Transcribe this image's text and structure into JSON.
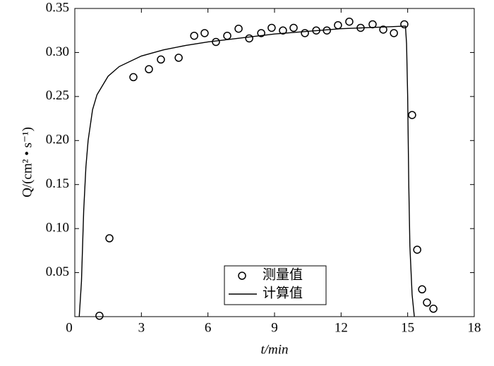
{
  "chart_data": {
    "type": "line",
    "xlabel": "t/min",
    "ylabel": "Q/(cm² • s⁻¹)",
    "xlim": [
      0,
      18
    ],
    "ylim": [
      0,
      0.35
    ],
    "xticks": [
      0,
      3,
      6,
      9,
      12,
      15,
      18
    ],
    "yticks": [
      {
        "value": 0.05,
        "label": "0.05"
      },
      {
        "value": 0.1,
        "label": "0.10"
      },
      {
        "value": 0.15,
        "label": "0.15"
      },
      {
        "value": 0.2,
        "label": "0.20"
      },
      {
        "value": 0.25,
        "label": "0.25"
      },
      {
        "value": 0.3,
        "label": "0.30"
      },
      {
        "value": 0.35,
        "label": "0.35"
      }
    ],
    "legend": "bottom-center",
    "series": [
      {
        "name": "测量值",
        "style": "markers",
        "color": "#000000",
        "x": [
          1.11,
          1.56,
          2.64,
          3.34,
          3.88,
          4.68,
          5.38,
          5.85,
          6.36,
          6.87,
          7.38,
          7.86,
          8.4,
          8.87,
          9.38,
          9.86,
          10.37,
          10.88,
          11.36,
          11.86,
          12.37,
          12.88,
          13.42,
          13.9,
          14.38,
          14.85,
          15.2,
          15.43,
          15.65,
          15.87,
          16.16
        ],
        "values": [
          0.001,
          0.089,
          0.272,
          0.281,
          0.292,
          0.294,
          0.319,
          0.322,
          0.312,
          0.319,
          0.327,
          0.316,
          0.322,
          0.328,
          0.325,
          0.328,
          0.322,
          0.325,
          0.325,
          0.331,
          0.335,
          0.328,
          0.332,
          0.326,
          0.322,
          0.332,
          0.229,
          0.076,
          0.031,
          0.016,
          0.009
        ]
      },
      {
        "name": "计算值",
        "style": "line",
        "color": "#000000",
        "x": [
          0.2,
          0.3,
          0.4,
          0.5,
          0.6,
          0.8,
          1.0,
          1.5,
          2,
          3,
          4,
          5,
          6,
          7,
          8,
          9,
          10,
          11,
          12,
          13,
          14,
          14.9,
          14.95,
          15.0,
          15.05,
          15.1,
          15.2,
          15.3
        ],
        "values": [
          0,
          0.04,
          0.12,
          0.17,
          0.2,
          0.235,
          0.252,
          0.273,
          0.284,
          0.296,
          0.303,
          0.308,
          0.312,
          0.315,
          0.318,
          0.321,
          0.323,
          0.325,
          0.327,
          0.328,
          0.329,
          0.33,
          0.31,
          0.25,
          0.15,
          0.08,
          0.025,
          0
        ]
      }
    ]
  }
}
